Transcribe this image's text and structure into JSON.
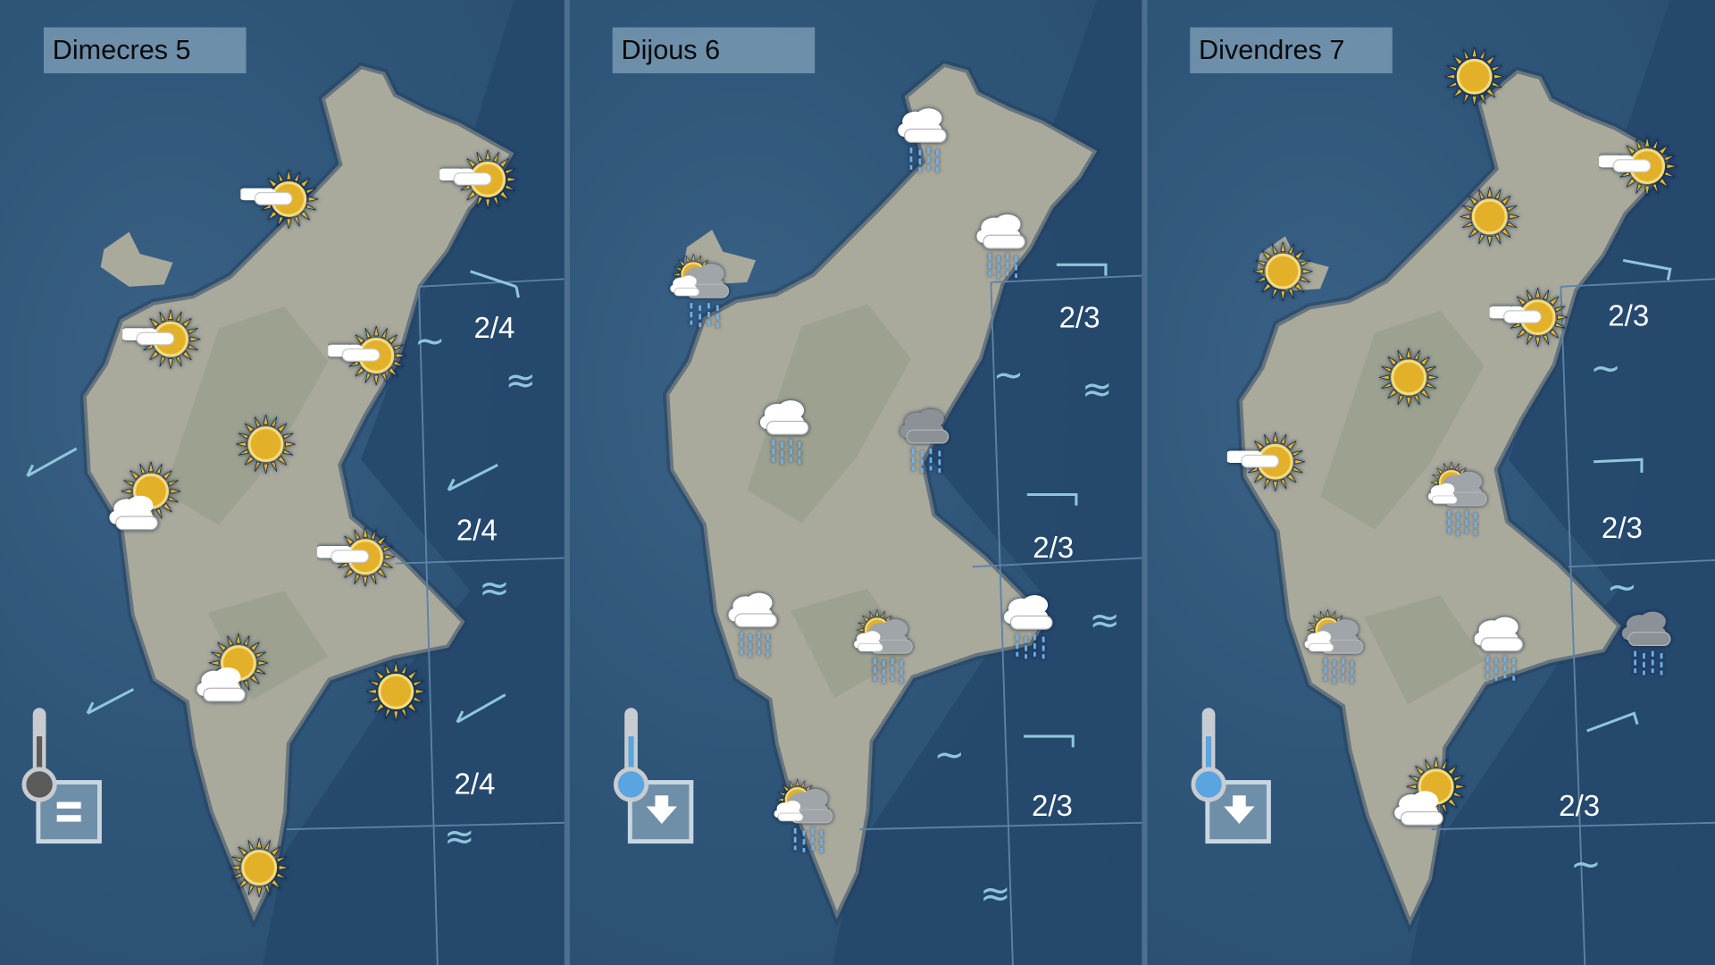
{
  "colors": {
    "sea": "#2e5578",
    "open_sea": "#24466c",
    "sun": "#e8b62a",
    "rain": "#6fb0e8",
    "wave": "#8ec6dc",
    "header_bg": "#9fbdd1"
  },
  "panels": [
    {
      "day": "Dimecres 5",
      "temperature_trend": "equal",
      "thermo_color": "#5a5a5a",
      "icons": [
        "sun-cloud",
        "sun-cloud",
        "sun-cloud",
        "sun-cloud",
        "sun",
        "cloud-sun",
        "sun-cloud",
        "cloud-sun",
        "sun",
        "sun"
      ],
      "sea_state": [
        "2/4",
        "2/4",
        "2/4"
      ]
    },
    {
      "day": "Dijous 6",
      "temperature_trend": "down",
      "thermo_color": "#5aa4e0",
      "icons": [
        "rain",
        "rain",
        "sun-cloud-rain",
        "rain",
        "dark-rain",
        "rain",
        "sun-cloud-rain",
        "rain",
        "sun-cloud-rain"
      ],
      "sea_state": [
        "2/3",
        "2/3",
        "2/3"
      ]
    },
    {
      "day": "Divendres 7",
      "temperature_trend": "down",
      "thermo_color": "#5aa4e0",
      "icons": [
        "sun",
        "sun-cloud",
        "sun",
        "sun",
        "sun-cloud",
        "sun",
        "sun-cloud",
        "sun-cloud-rain",
        "sun-cloud-rain",
        "rain",
        "dark-rain",
        "cloud-sun"
      ],
      "sea_state": [
        "2/3",
        "2/3",
        "2/3"
      ]
    }
  ]
}
